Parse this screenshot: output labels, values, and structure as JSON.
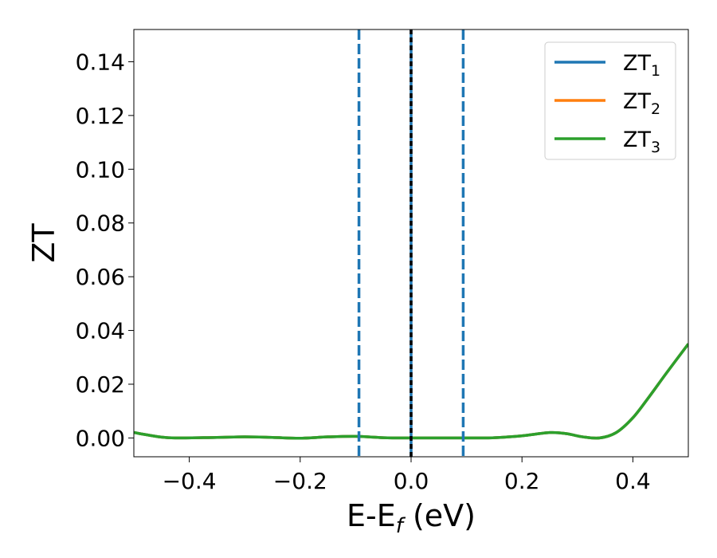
{
  "chart_data": {
    "type": "line",
    "xlabel_main": "E-E",
    "xlabel_sub": "f",
    "xlabel_unit": " (eV)",
    "ylabel": "ZT",
    "xlim": [
      -0.5,
      0.5
    ],
    "ylim": [
      -0.007,
      0.152
    ],
    "xticks": [
      -0.4,
      -0.2,
      0.0,
      0.2,
      0.4
    ],
    "xtick_labels": [
      "−0.4",
      "−0.2",
      "0.0",
      "0.2",
      "0.4"
    ],
    "yticks": [
      0.0,
      0.02,
      0.04,
      0.06,
      0.08,
      0.1,
      0.12,
      0.14
    ],
    "ytick_labels": [
      "0.00",
      "0.02",
      "0.04",
      "0.06",
      "0.08",
      "0.10",
      "0.12",
      "0.14"
    ],
    "grid": false,
    "legend_position": "top-right",
    "series": [
      {
        "name": "ZT",
        "sub": "1",
        "color": "#1f77b4",
        "x": [
          -0.5,
          -0.45,
          -0.42,
          -0.35,
          -0.3,
          -0.25,
          -0.2,
          -0.15,
          -0.1,
          -0.05,
          0.0,
          0.05,
          0.1,
          0.15,
          0.2,
          0.25,
          0.28,
          0.31,
          0.34,
          0.37,
          0.4,
          0.43,
          0.46,
          0.5
        ],
        "y": [
          0.002,
          0.0003,
          0.0,
          0.0002,
          0.0004,
          0.0002,
          -0.0001,
          0.0004,
          0.0006,
          0.0001,
          0.0,
          0.0,
          0.0,
          0.0001,
          0.0008,
          0.002,
          0.0016,
          0.0004,
          0.0,
          0.002,
          0.0075,
          0.0155,
          0.024,
          0.035
        ]
      },
      {
        "name": "ZT",
        "sub": "2",
        "color": "#ff7f0e",
        "x": [
          -0.5,
          -0.45,
          -0.42,
          -0.35,
          -0.3,
          -0.25,
          -0.2,
          -0.15,
          -0.1,
          -0.05,
          0.0,
          0.05,
          0.1,
          0.15,
          0.2,
          0.25,
          0.28,
          0.31,
          0.34,
          0.37,
          0.4,
          0.43,
          0.46,
          0.5
        ],
        "y": [
          0.002,
          0.0003,
          0.0,
          0.0002,
          0.0004,
          0.0002,
          -0.0001,
          0.0004,
          0.0006,
          0.0001,
          0.0,
          0.0,
          0.0,
          0.0001,
          0.0008,
          0.002,
          0.0016,
          0.0004,
          0.0,
          0.002,
          0.0075,
          0.0155,
          0.024,
          0.035
        ]
      },
      {
        "name": "ZT",
        "sub": "3",
        "color": "#2ca02c",
        "x": [
          -0.5,
          -0.45,
          -0.42,
          -0.35,
          -0.3,
          -0.25,
          -0.2,
          -0.15,
          -0.1,
          -0.05,
          0.0,
          0.05,
          0.1,
          0.15,
          0.2,
          0.25,
          0.28,
          0.31,
          0.34,
          0.37,
          0.4,
          0.43,
          0.46,
          0.5
        ],
        "y": [
          0.002,
          0.0003,
          0.0,
          0.0002,
          0.0004,
          0.0002,
          -0.0001,
          0.0004,
          0.0006,
          0.0001,
          0.0,
          0.0,
          0.0,
          0.0001,
          0.0008,
          0.002,
          0.0016,
          0.0004,
          0.0,
          0.002,
          0.0075,
          0.0155,
          0.024,
          0.035
        ]
      }
    ],
    "vlines": [
      {
        "x": -0.094,
        "style": "dashed",
        "color": "#1f77b4"
      },
      {
        "x": 0.0,
        "style": "solid",
        "color": "#1f77b4"
      },
      {
        "x": 0.0,
        "style": "dashed",
        "color": "#000000"
      },
      {
        "x": 0.094,
        "style": "dashed",
        "color": "#1f77b4"
      }
    ]
  }
}
